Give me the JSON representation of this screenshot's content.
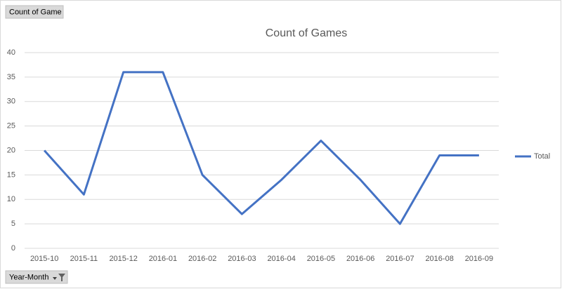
{
  "field_buttons": {
    "values_field": "Count of Game",
    "axis_field": "Year-Month"
  },
  "chart_data": {
    "type": "line",
    "title": "Count of Games",
    "categories": [
      "2015-10",
      "2015-11",
      "2015-12",
      "2016-01",
      "2016-02",
      "2016-03",
      "2016-04",
      "2016-05",
      "2016-06",
      "2016-07",
      "2016-08",
      "2016-09"
    ],
    "series": [
      {
        "name": "Total",
        "color": "#4472c4",
        "values": [
          20,
          11,
          36,
          36,
          15,
          7,
          14,
          22,
          14,
          5,
          19,
          19
        ]
      }
    ],
    "ylim": [
      0,
      40
    ],
    "yticks": [
      0,
      5,
      10,
      15,
      20,
      25,
      30,
      35,
      40
    ],
    "grid": true,
    "legend": "right"
  }
}
